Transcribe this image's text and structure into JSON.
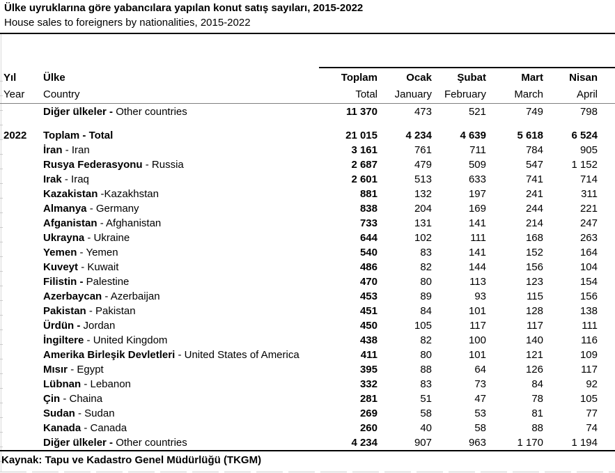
{
  "header": {
    "title_tr": "Ülke uyruklarına göre yabancılara yapılan konut satış sayıları, 2015-2022",
    "title_en": "House sales to foreigners by nationalities, 2015-2022"
  },
  "table": {
    "header": {
      "year": {
        "tr": "Yıl",
        "en": "Year"
      },
      "country": {
        "tr": "Ülke",
        "en": "Country"
      },
      "toplam": {
        "tr": "Toplam",
        "en": "Total"
      },
      "ocak": {
        "tr": "Ocak",
        "en": "January"
      },
      "subat": {
        "tr": "Şubat",
        "en": "February"
      },
      "mart": {
        "tr": "Mart",
        "en": "March"
      },
      "nisan": {
        "tr": "Nisan",
        "en": "April"
      }
    },
    "rows": [
      {
        "year": "",
        "name_bold": "Diğer ülkeler -",
        "name_rest": "Other countries",
        "values": [
          "11 370",
          "473",
          "521",
          "749",
          "798"
        ],
        "style": "normal",
        "gap_before": false
      },
      {
        "year": "2022",
        "name_bold": "Toplam -",
        "name_rest": "Total",
        "values": [
          "21 015",
          "4 234",
          "4 639",
          "5 618",
          "6 524"
        ],
        "style": "total",
        "gap_before": true
      },
      {
        "year": "",
        "name_bold": "İran",
        "name_rest": "- Iran",
        "values": [
          "3 161",
          "761",
          "711",
          "784",
          "905"
        ],
        "style": "normal",
        "gap_before": false
      },
      {
        "year": "",
        "name_bold": "Rusya Federasyonu",
        "name_rest": "- Russia",
        "values": [
          "2 687",
          "479",
          "509",
          "547",
          "1 152"
        ],
        "style": "normal",
        "gap_before": false
      },
      {
        "year": "",
        "name_bold": "Irak",
        "name_rest": "- Iraq",
        "values": [
          "2 601",
          "513",
          "633",
          "741",
          "714"
        ],
        "style": "normal",
        "gap_before": false
      },
      {
        "year": "",
        "name_bold": "Kazakistan",
        "name_rest": "-Kazakhstan",
        "values": [
          "881",
          "132",
          "197",
          "241",
          "311"
        ],
        "style": "normal",
        "gap_before": false
      },
      {
        "year": "",
        "name_bold": "Almanya",
        "name_rest": "- Germany",
        "values": [
          "838",
          "204",
          "169",
          "244",
          "221"
        ],
        "style": "normal",
        "gap_before": false
      },
      {
        "year": "",
        "name_bold": "Afganistan",
        "name_rest": "- Afghanistan",
        "values": [
          "733",
          "131",
          "141",
          "214",
          "247"
        ],
        "style": "normal",
        "gap_before": false
      },
      {
        "year": "",
        "name_bold": "Ukrayna",
        "name_rest": "- Ukraine",
        "values": [
          "644",
          "102",
          "111",
          "168",
          "263"
        ],
        "style": "normal",
        "gap_before": false
      },
      {
        "year": "",
        "name_bold": "Yemen",
        "name_rest": "- Yemen",
        "values": [
          "540",
          "83",
          "141",
          "152",
          "164"
        ],
        "style": "normal",
        "gap_before": false
      },
      {
        "year": "",
        "name_bold": "Kuveyt",
        "name_rest": "- Kuwait",
        "values": [
          "486",
          "82",
          "144",
          "156",
          "104"
        ],
        "style": "normal",
        "gap_before": false
      },
      {
        "year": "",
        "name_bold": "Filistin -",
        "name_rest": "Palestine",
        "values": [
          "470",
          "80",
          "113",
          "123",
          "154"
        ],
        "style": "normal",
        "gap_before": false
      },
      {
        "year": "",
        "name_bold": "Azerbaycan",
        "name_rest": "- Azerbaijan",
        "values": [
          "453",
          "89",
          "93",
          "115",
          "156"
        ],
        "style": "normal",
        "gap_before": false
      },
      {
        "year": "",
        "name_bold": "Pakistan",
        "name_rest": "- Pakistan",
        "values": [
          "451",
          "84",
          "101",
          "128",
          "138"
        ],
        "style": "normal",
        "gap_before": false
      },
      {
        "year": "",
        "name_bold": "Ürdün -",
        "name_rest": "Jordan",
        "values": [
          "450",
          "105",
          "117",
          "117",
          "111"
        ],
        "style": "normal",
        "gap_before": false
      },
      {
        "year": "",
        "name_bold": "İngiltere",
        "name_rest": "- United Kingdom",
        "values": [
          "438",
          "82",
          "100",
          "140",
          "116"
        ],
        "style": "normal",
        "gap_before": false
      },
      {
        "year": "",
        "name_bold": "Amerika Birleşik Devletleri",
        "name_rest": "- United States of America",
        "values": [
          "411",
          "80",
          "101",
          "121",
          "109"
        ],
        "style": "normal",
        "gap_before": false
      },
      {
        "year": "",
        "name_bold": "Mısır",
        "name_rest": "- Egypt",
        "values": [
          "395",
          "88",
          "64",
          "126",
          "117"
        ],
        "style": "normal",
        "gap_before": false
      },
      {
        "year": "",
        "name_bold": "Lübnan",
        "name_rest": "- Lebanon",
        "values": [
          "332",
          "83",
          "73",
          "84",
          "92"
        ],
        "style": "normal",
        "gap_before": false
      },
      {
        "year": "",
        "name_bold": "Çin",
        "name_rest": "- Chaina",
        "values": [
          "281",
          "51",
          "47",
          "78",
          "105"
        ],
        "style": "normal",
        "gap_before": false
      },
      {
        "year": "",
        "name_bold": "Sudan",
        "name_rest": "- Sudan",
        "values": [
          "269",
          "58",
          "53",
          "81",
          "77"
        ],
        "style": "normal",
        "gap_before": false
      },
      {
        "year": "",
        "name_bold": "Kanada",
        "name_rest": "- Canada",
        "values": [
          "260",
          "40",
          "58",
          "88",
          "74"
        ],
        "style": "normal",
        "gap_before": false
      },
      {
        "year": "",
        "name_bold": "Diğer ülkeler -",
        "name_rest": "Other countries",
        "values": [
          "4 234",
          "907",
          "963",
          "1 170",
          "1 194"
        ],
        "style": "normal",
        "gap_before": false
      }
    ]
  },
  "footer": {
    "source": "Kaynak: Tapu ve Kadastro Genel Müdürlüğü (TKGM)"
  }
}
